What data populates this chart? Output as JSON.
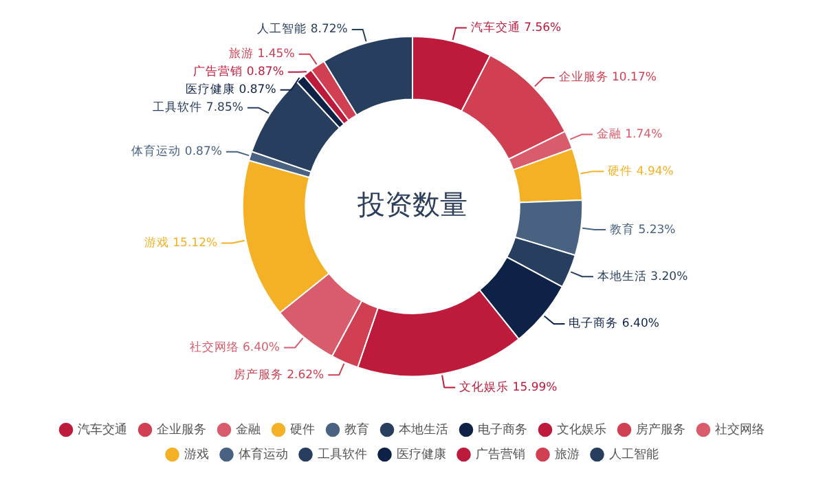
{
  "chart_data": {
    "type": "donut",
    "title": "投资数量",
    "categories": [
      "汽车交通",
      "企业服务",
      "金融",
      "硬件",
      "教育",
      "本地生活",
      "电子商务",
      "文化娱乐",
      "房产服务",
      "社交网络",
      "游戏",
      "体育运动",
      "工具软件",
      "医疗健康",
      "广告营销",
      "旅游",
      "人工智能"
    ],
    "values": [
      7.56,
      10.17,
      1.74,
      4.94,
      5.23,
      3.2,
      6.4,
      15.99,
      2.62,
      6.4,
      15.12,
      0.87,
      7.85,
      0.87,
      0.87,
      1.45,
      8.72
    ],
    "value_labels": [
      "7.56%",
      "10.17%",
      "1.74%",
      "4.94%",
      "5.23%",
      "3.20%",
      "6.40%",
      "15.99%",
      "2.62%",
      "6.40%",
      "15.12%",
      "0.87%",
      "7.85%",
      "0.87%",
      "0.87%",
      "1.45%",
      "8.72%"
    ],
    "colors": [
      "#be1a3c",
      "#d03f52",
      "#d95c6c",
      "#f5b125",
      "#4a6282",
      "#283e5e",
      "#0e2247",
      "#be1a3c",
      "#d03f52",
      "#d95c6c",
      "#f5b125",
      "#4a6282",
      "#283e5e",
      "#0e2247",
      "#be1a3c",
      "#d03f52",
      "#283e5e"
    ],
    "legend": "bottom"
  }
}
